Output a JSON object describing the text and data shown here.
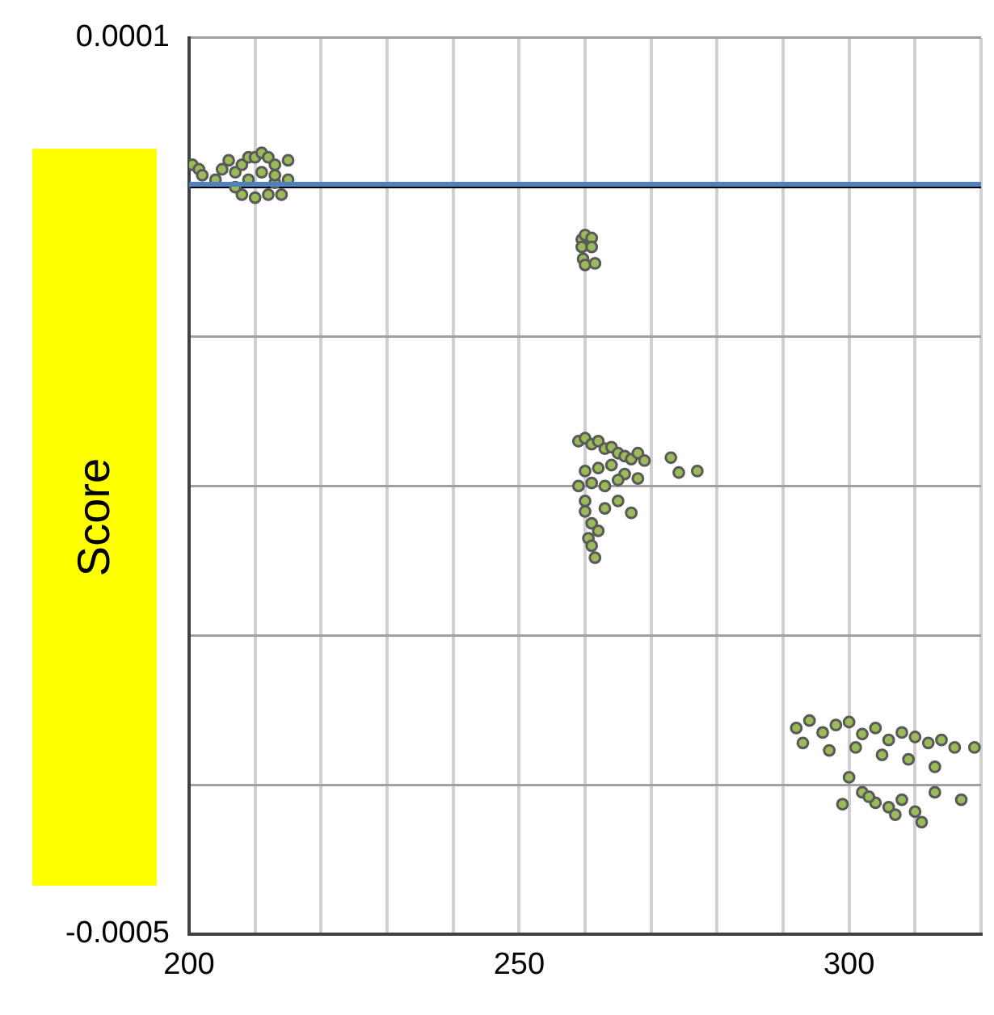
{
  "chart_data": {
    "type": "scatter",
    "ylabel": "Score",
    "xlim": [
      200,
      320
    ],
    "xticks": [
      200,
      {
        "value": 210,
        "label": null
      },
      {
        "value": 220,
        "label": null
      },
      {
        "value": 230,
        "label": null
      },
      {
        "value": 240,
        "label": null
      },
      250,
      {
        "value": 260,
        "label": null
      },
      {
        "value": 270,
        "label": null
      },
      {
        "value": 280,
        "label": null
      },
      {
        "value": 290,
        "label": null
      },
      300,
      {
        "value": 310,
        "label": null
      },
      {
        "value": 320,
        "label": null
      }
    ],
    "ylim": [
      -0.0005,
      0.0001
    ],
    "yticks": [
      -0.0005,
      {
        "value": -0.0004,
        "label": null
      },
      {
        "value": -0.0003,
        "label": null
      },
      {
        "value": -0.0002,
        "label": null
      },
      {
        "value": -0.0001,
        "label": null
      },
      {
        "value": 0,
        "label": null
      },
      0.0001
    ],
    "grid": true,
    "marker": "circle",
    "ref_lines": [
      {
        "axis": "y",
        "value": 2e-06,
        "color": "#4f81bd"
      }
    ],
    "series": [
      {
        "color": "#9bbb59",
        "x": [
          200.5,
          201.5,
          202,
          204,
          205,
          206,
          207,
          208,
          209,
          210,
          211,
          212,
          213,
          213,
          212,
          210,
          208,
          207,
          209,
          211,
          213,
          215,
          215,
          214,
          259.5,
          260,
          261,
          259.5,
          261,
          259.7,
          260,
          261.5,
          259,
          260,
          261,
          262,
          263,
          264,
          265,
          266,
          267,
          268,
          269,
          260,
          262,
          264,
          266,
          268,
          259,
          261,
          263,
          265,
          273,
          274.2,
          277,
          260,
          260,
          261,
          260.5,
          261,
          261.5,
          262,
          263,
          265,
          267,
          292,
          294,
          296,
          298,
          300,
          302,
          304,
          306,
          308,
          310,
          312,
          314,
          316,
          319,
          293,
          297,
          301,
          305,
          309,
          313,
          300,
          302,
          304,
          306,
          308,
          310,
          311,
          307,
          303,
          299,
          313,
          317
        ],
        "values": [
          1.5e-05,
          1.2e-05,
          8e-06,
          5e-06,
          1.2e-05,
          1.8e-05,
          1e-05,
          1.5e-05,
          2e-05,
          2e-05,
          2.3e-05,
          2e-05,
          1.5e-05,
          3e-06,
          -5e-06,
          -7e-06,
          -5e-06,
          0,
          5e-06,
          1e-05,
          8e-06,
          1.8e-05,
          5e-06,
          -5e-06,
          -3.5e-05,
          -3.2e-05,
          -3.4e-05,
          -4e-05,
          -4e-05,
          -4.8e-05,
          -5.2e-05,
          -5.1e-05,
          -0.00017,
          -0.000168,
          -0.000172,
          -0.00017,
          -0.000175,
          -0.000174,
          -0.000178,
          -0.00018,
          -0.000182,
          -0.000178,
          -0.000183,
          -0.00019,
          -0.000188,
          -0.000186,
          -0.000192,
          -0.000195,
          -0.0002,
          -0.000198,
          -0.0002,
          -0.000196,
          -0.000181,
          -0.000191,
          -0.00019,
          -0.00021,
          -0.000217,
          -0.000225,
          -0.000235,
          -0.00024,
          -0.000248,
          -0.00023,
          -0.000215,
          -0.00021,
          -0.000218,
          -0.000362,
          -0.000357,
          -0.000365,
          -0.00036,
          -0.000358,
          -0.000366,
          -0.000362,
          -0.00037,
          -0.000365,
          -0.000368,
          -0.000372,
          -0.00037,
          -0.000375,
          -0.000375,
          -0.000372,
          -0.000377,
          -0.000375,
          -0.00038,
          -0.000383,
          -0.000388,
          -0.000395,
          -0.000405,
          -0.000412,
          -0.000415,
          -0.00041,
          -0.000418,
          -0.000425,
          -0.00042,
          -0.000408,
          -0.000413,
          -0.000405,
          -0.00041
        ]
      }
    ]
  }
}
